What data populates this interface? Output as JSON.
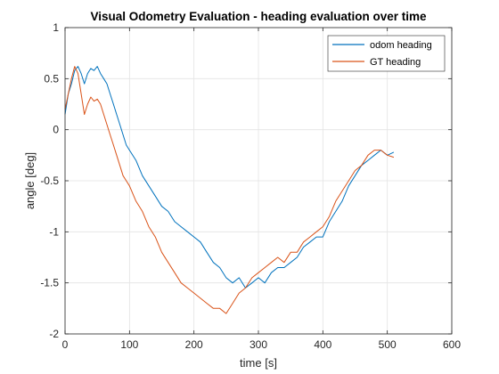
{
  "chart_data": {
    "type": "line",
    "title": "Visual Odometry Evaluation - heading evaluation over time",
    "xlabel": "time [s]",
    "ylabel": "angle [deg]",
    "xlim": [
      0,
      600
    ],
    "ylim": [
      -2,
      1
    ],
    "xticks": [
      0,
      100,
      200,
      300,
      400,
      500,
      600
    ],
    "yticks": [
      -2,
      -1.5,
      -1,
      -0.5,
      0,
      0.5,
      1
    ],
    "xtick_labels": [
      "0",
      "100",
      "200",
      "300",
      "400",
      "500",
      "600"
    ],
    "ytick_labels": [
      "-2",
      "-1.5",
      "-1",
      "-0.5",
      "0",
      "0.5",
      "1"
    ],
    "grid": true,
    "legend_position": "top-right",
    "series": [
      {
        "name": "odom heading",
        "color": "#0072BD",
        "x": [
          0,
          5,
          10,
          15,
          20,
          25,
          30,
          35,
          40,
          45,
          50,
          55,
          60,
          65,
          70,
          75,
          80,
          85,
          90,
          95,
          100,
          110,
          120,
          130,
          140,
          150,
          160,
          170,
          180,
          190,
          200,
          210,
          220,
          230,
          240,
          250,
          260,
          270,
          280,
          290,
          300,
          310,
          320,
          330,
          340,
          350,
          360,
          370,
          380,
          390,
          400,
          410,
          420,
          430,
          440,
          450,
          460,
          470,
          480,
          490,
          500,
          510
        ],
        "y": [
          0.15,
          0.35,
          0.45,
          0.58,
          0.62,
          0.55,
          0.45,
          0.55,
          0.6,
          0.58,
          0.62,
          0.55,
          0.5,
          0.45,
          0.35,
          0.25,
          0.15,
          0.05,
          -0.05,
          -0.15,
          -0.2,
          -0.3,
          -0.45,
          -0.55,
          -0.65,
          -0.75,
          -0.8,
          -0.9,
          -0.95,
          -1.0,
          -1.05,
          -1.1,
          -1.2,
          -1.3,
          -1.35,
          -1.45,
          -1.5,
          -1.45,
          -1.55,
          -1.5,
          -1.45,
          -1.5,
          -1.4,
          -1.35,
          -1.35,
          -1.3,
          -1.25,
          -1.15,
          -1.1,
          -1.05,
          -1.05,
          -0.9,
          -0.8,
          -0.7,
          -0.55,
          -0.45,
          -0.35,
          -0.3,
          -0.25,
          -0.2,
          -0.25,
          -0.22
        ]
      },
      {
        "name": "GT heading",
        "color": "#D95319",
        "x": [
          0,
          5,
          10,
          15,
          20,
          25,
          30,
          35,
          40,
          45,
          50,
          55,
          60,
          65,
          70,
          75,
          80,
          85,
          90,
          95,
          100,
          110,
          120,
          130,
          140,
          150,
          160,
          170,
          180,
          190,
          200,
          210,
          220,
          230,
          240,
          250,
          260,
          270,
          280,
          290,
          300,
          310,
          320,
          330,
          340,
          350,
          360,
          370,
          380,
          390,
          400,
          410,
          420,
          430,
          440,
          450,
          460,
          470,
          480,
          490,
          500,
          510
        ],
        "y": [
          0.2,
          0.35,
          0.5,
          0.62,
          0.55,
          0.35,
          0.15,
          0.25,
          0.32,
          0.28,
          0.3,
          0.25,
          0.15,
          0.05,
          -0.05,
          -0.15,
          -0.25,
          -0.35,
          -0.45,
          -0.5,
          -0.55,
          -0.7,
          -0.8,
          -0.95,
          -1.05,
          -1.2,
          -1.3,
          -1.4,
          -1.5,
          -1.55,
          -1.6,
          -1.65,
          -1.7,
          -1.75,
          -1.75,
          -1.8,
          -1.7,
          -1.6,
          -1.55,
          -1.45,
          -1.4,
          -1.35,
          -1.3,
          -1.25,
          -1.3,
          -1.2,
          -1.2,
          -1.1,
          -1.05,
          -1.0,
          -0.95,
          -0.85,
          -0.7,
          -0.6,
          -0.5,
          -0.4,
          -0.35,
          -0.25,
          -0.2,
          -0.2,
          -0.25,
          -0.27
        ]
      }
    ]
  }
}
